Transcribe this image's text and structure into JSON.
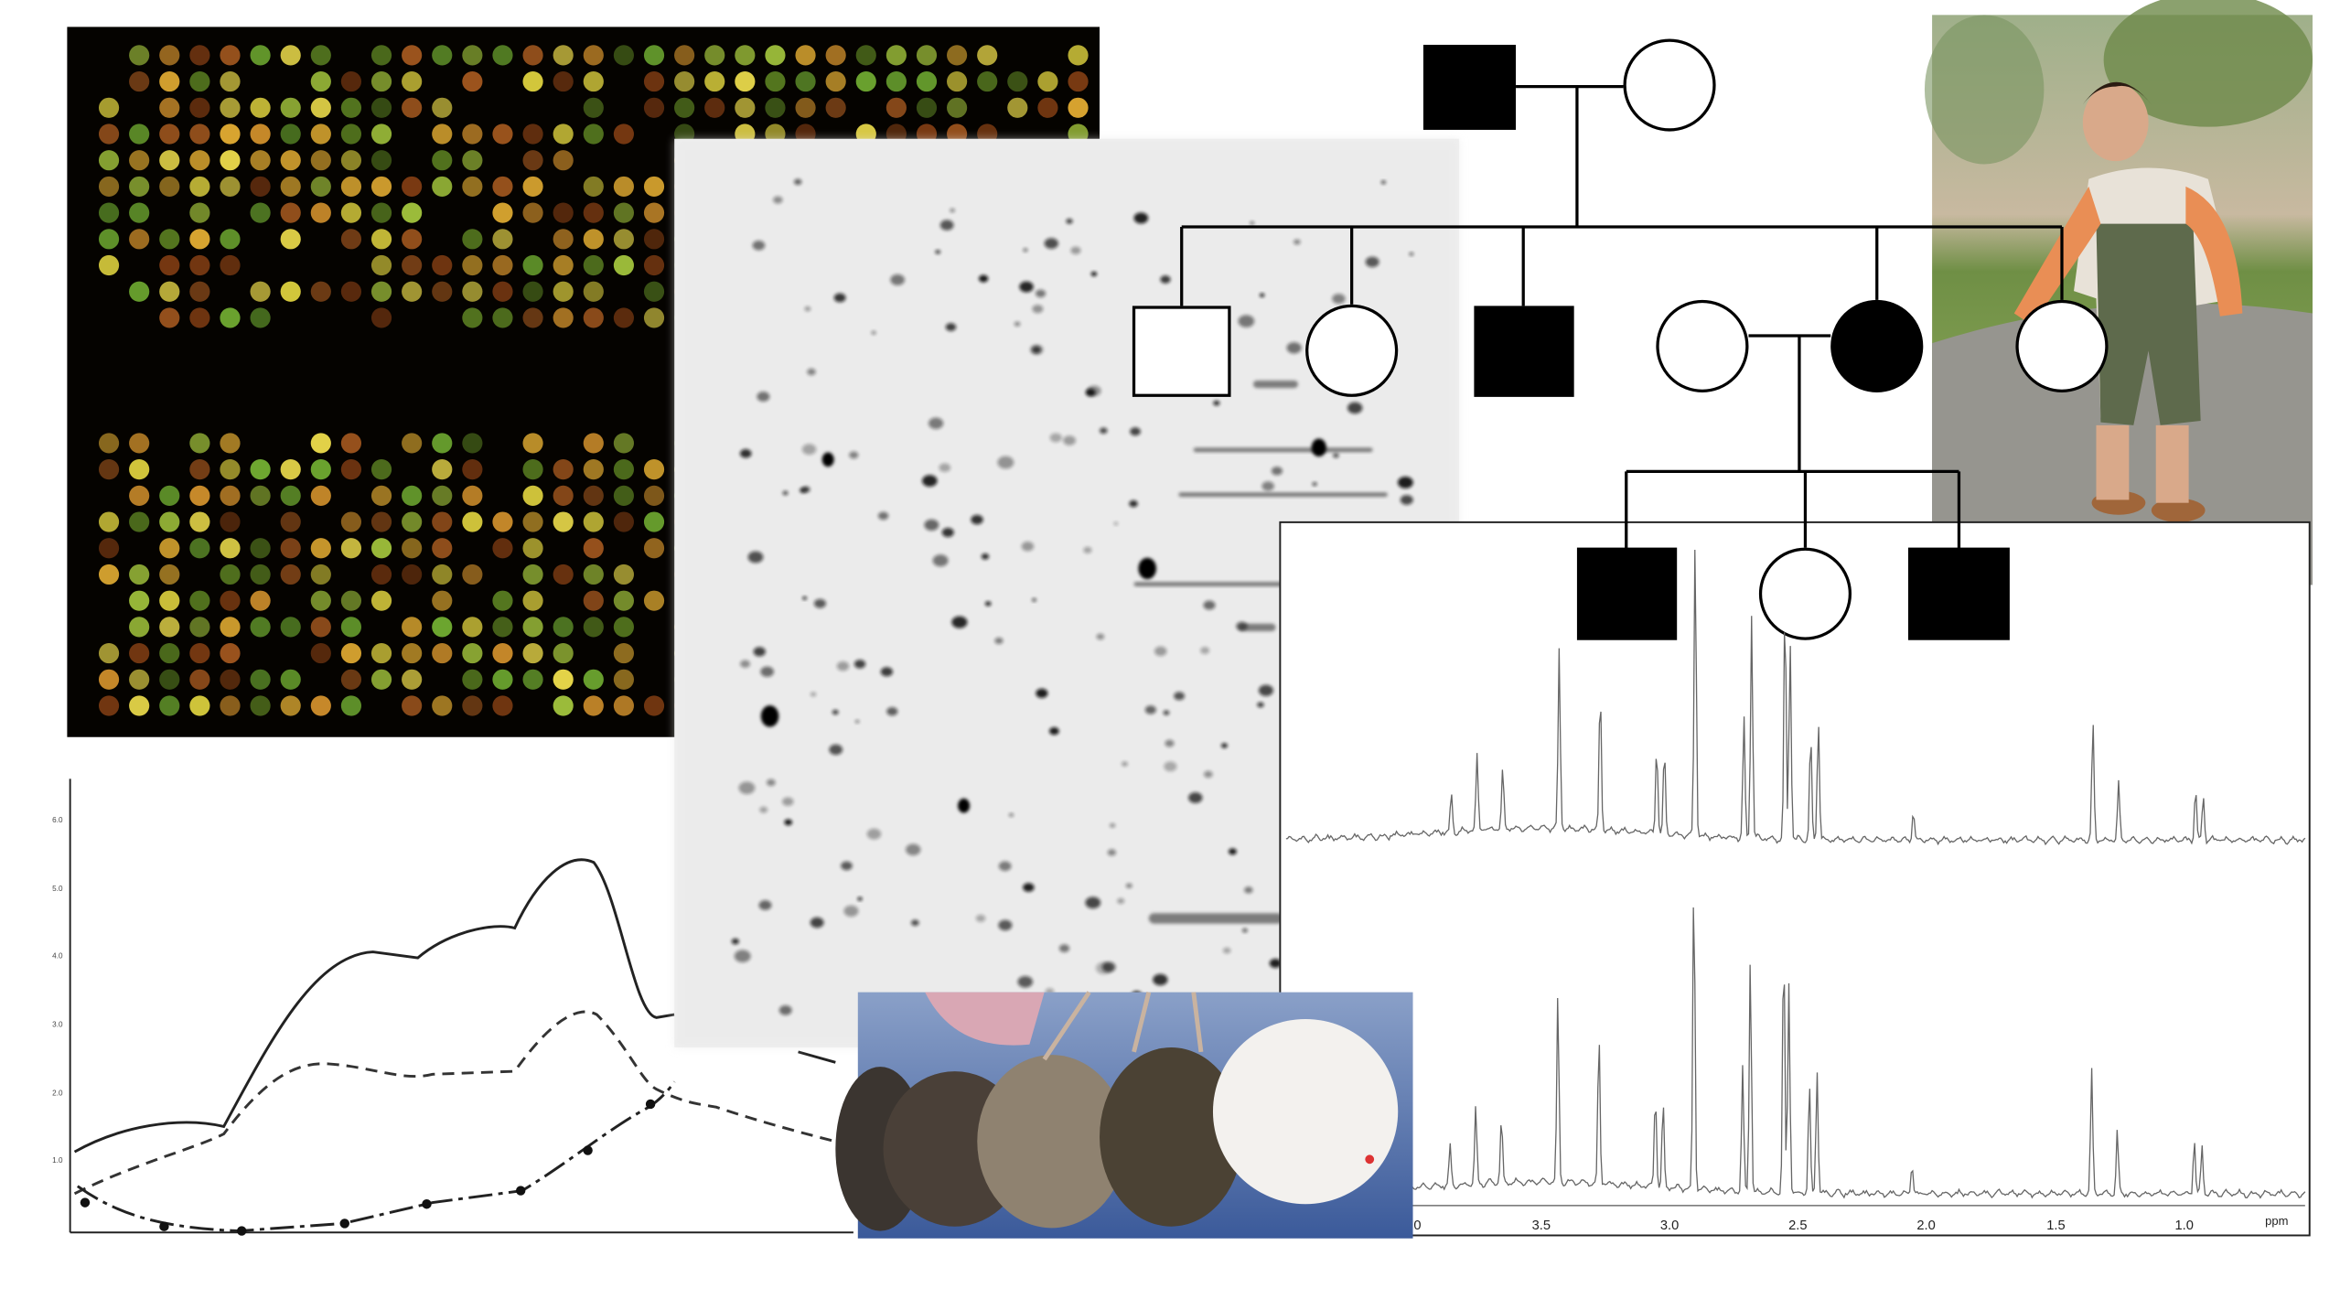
{
  "line_chart": {
    "y_labels": [
      "6.0",
      "5.0",
      "4.0",
      "3.0",
      "2.0",
      "1.0"
    ]
  },
  "nmr_axis": {
    "labels": [
      "0",
      "3.5",
      "3.0",
      "2.5",
      "2.0",
      "1.5",
      "1.0"
    ],
    "unit": "ppm"
  }
}
